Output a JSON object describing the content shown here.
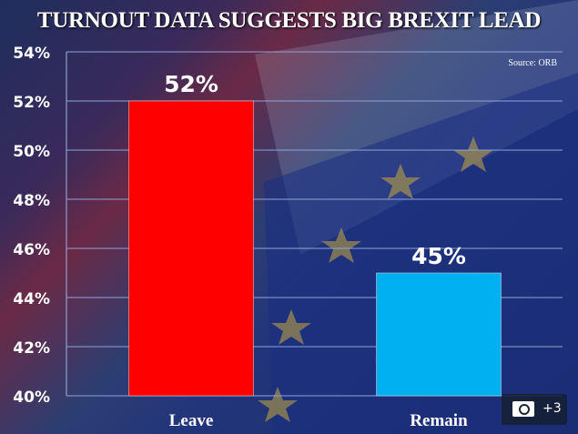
{
  "chart_data": {
    "type": "bar",
    "title": "TURNOUT DATA SUGGESTS BIG BREXIT LEAD",
    "source": "Source: ORB",
    "categories": [
      "Leave",
      "Remain"
    ],
    "values": [
      52,
      45
    ],
    "data_labels": [
      "52%",
      "45%"
    ],
    "colors": [
      "#ff0000",
      "#00b0f0"
    ],
    "ylim": [
      40,
      54
    ],
    "yticks": [
      "40%",
      "42%",
      "44%",
      "46%",
      "48%",
      "50%",
      "52%",
      "54%"
    ],
    "ytick_values": [
      40,
      42,
      44,
      46,
      48,
      50,
      52,
      54
    ],
    "grid": true,
    "xlabel": "",
    "ylabel": ""
  },
  "gallery": {
    "icon": "camera-icon",
    "count": "+3"
  }
}
